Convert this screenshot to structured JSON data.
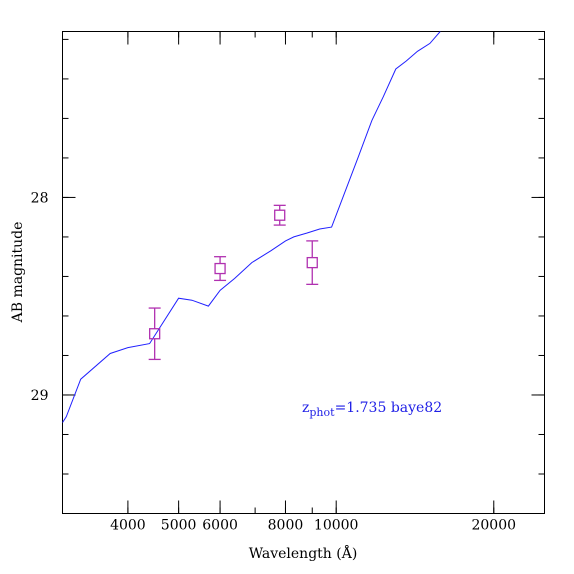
{
  "chart_data": {
    "type": "line",
    "xlabel": "Wavelength (Å)",
    "ylabel": "AB magnitude",
    "x_scale": "log",
    "xlim": [
      3000,
      25000
    ],
    "ylim": [
      29.6,
      27.16
    ],
    "x_ticks": [
      4000,
      5000,
      6000,
      8000,
      10000,
      20000
    ],
    "x_tick_labels": [
      "4000",
      "5000",
      "6000",
      "8000",
      "10000",
      "20000"
    ],
    "y_ticks": [
      28,
      29
    ],
    "y_tick_labels": [
      "28",
      "29"
    ],
    "annotation": {
      "z_main": "z",
      "z_sub": "phot",
      "rest": "=1.735 baye82"
    },
    "colors": {
      "model": "#2020ff",
      "photometry": "#b030b0",
      "annotation": "#1f1fe6"
    },
    "series": [
      {
        "type": "line",
        "x": [
          3000,
          3050,
          3250,
          3700,
          4000,
          4400,
          5000,
          5300,
          5700,
          6000,
          6400,
          6900,
          7500,
          8000,
          8300,
          8800,
          9300,
          9800,
          11000,
          11700,
          12300,
          13000,
          13600,
          14300,
          15100,
          15800
        ],
        "y": [
          29.14,
          29.11,
          28.92,
          28.79,
          28.76,
          28.74,
          28.51,
          28.52,
          28.55,
          28.47,
          28.41,
          28.33,
          28.27,
          28.22,
          28.2,
          28.18,
          28.16,
          28.15,
          27.8,
          27.61,
          27.49,
          27.35,
          27.31,
          27.26,
          27.22,
          27.16
        ]
      },
      {
        "type": "errorbar",
        "x": [
          4500,
          6000,
          7800,
          9000
        ],
        "y": [
          28.69,
          28.36,
          28.09,
          28.33
        ],
        "yerr": [
          0.13,
          0.06,
          0.05,
          0.11
        ]
      }
    ]
  }
}
